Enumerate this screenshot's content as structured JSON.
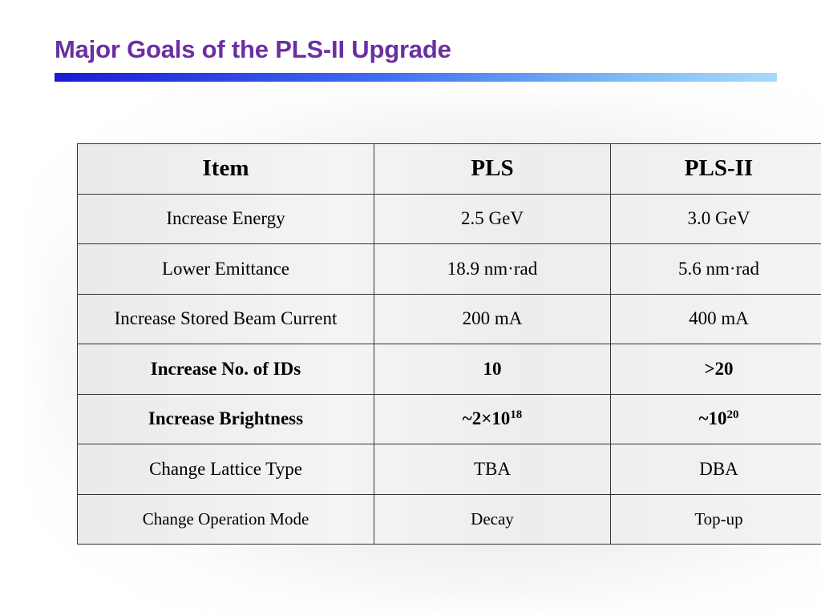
{
  "slide": {
    "title": "Major Goals of the PLS-II Upgrade"
  },
  "table": {
    "headers": [
      "Item",
      "PLS",
      "PLS-II"
    ],
    "rows": [
      {
        "item": "Increase Energy",
        "pls": "2.5 GeV",
        "pls2": "3.0 GeV"
      },
      {
        "item": "Lower Emittance",
        "pls": "18.9 nm·rad",
        "pls2": "5.6 nm·rad"
      },
      {
        "item": "Increase Stored Beam Current",
        "pls": "200 mA",
        "pls2": "400 mA"
      },
      {
        "item": "Increase No. of IDs",
        "pls": "10",
        "pls2": ">20"
      },
      {
        "item": "Increase Brightness",
        "pls_base": "~2×10",
        "pls_exp": "18",
        "pls2_base": "~10",
        "pls2_exp": "20"
      },
      {
        "item": "Change Lattice Type",
        "pls": "TBA",
        "pls2": "DBA"
      },
      {
        "item": "Change Operation Mode",
        "pls": "Decay",
        "pls2": "Top-up"
      }
    ]
  },
  "colors": {
    "title": "#6a2fa0",
    "bar_start": "#1a1ad6",
    "bar_end": "#a9d9fb"
  }
}
